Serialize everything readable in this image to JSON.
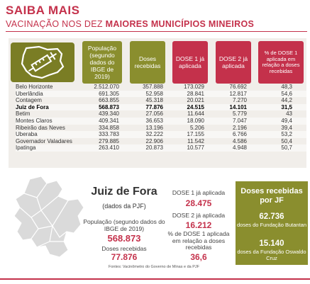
{
  "header": {
    "title": "SAIBA MAIS",
    "subtitle_prefix": "VACINAÇÃO NOS DEZ ",
    "subtitle_bold": "MAIORES MUNICÍPIOS MINEIROS"
  },
  "columns": [
    "População (segundo dados do IBGE de 2019)",
    "Doses recebidas",
    "DOSE 1 já aplicada",
    "DOSE 2 já aplicada",
    "% de DOSE 1 aplicada em relação a doses recebidas"
  ],
  "rows": [
    {
      "city": "Belo Horizonte",
      "pop": "2.512.070",
      "doses": "357.888",
      "d1": "173.029",
      "d2": "76.692",
      "pct": "48,3"
    },
    {
      "city": "Uberlândia",
      "pop": "691.305",
      "doses": "52.958",
      "d1": "28.841",
      "d2": "12.817",
      "pct": "54,6"
    },
    {
      "city": "Contagem",
      "pop": "663.855",
      "doses": "45.318",
      "d1": "20.021",
      "d2": "7.270",
      "pct": "44,2"
    },
    {
      "city": "Juiz de Fora",
      "pop": "568.873",
      "doses": "77.876",
      "d1": "24.515",
      "d2": "14.101",
      "pct": "31,5"
    },
    {
      "city": "Betim",
      "pop": "439.340",
      "doses": "27.056",
      "d1": "11.644",
      "d2": "5.779",
      "pct": "43"
    },
    {
      "city": "Montes Claros",
      "pop": "409.341",
      "doses": "36.653",
      "d1": "18.090",
      "d2": "7.047",
      "pct": "49,4"
    },
    {
      "city": "Ribeirão das Neves",
      "pop": "334.858",
      "doses": "13.196",
      "d1": "5.206",
      "d2": "2.196",
      "pct": "39,4"
    },
    {
      "city": "Uberaba",
      "pop": "333.783",
      "doses": "32.222",
      "d1": "17.155",
      "d2": "6.766",
      "pct": "53,2"
    },
    {
      "city": "Governador Valadares",
      "pop": "279.885",
      "doses": "22.906",
      "d1": "11.542",
      "d2": "4.586",
      "pct": "50,4"
    },
    {
      "city": "Ipatinga",
      "pop": "263.410",
      "doses": "20.873",
      "d1": "10.577",
      "d2": "4.948",
      "pct": "50,7"
    }
  ],
  "juiz_de_fora": {
    "title": "Juiz de Fora",
    "source": "(dados da PJF)",
    "population_label": "População (segundo dados do IBGE de 2019)",
    "population": "568.873",
    "doses_label": "Doses recebidas",
    "doses": "77.876",
    "dose1_label": "DOSE 1 já aplicada",
    "dose1": "28.475",
    "dose2_label": "DOSE 2 já aplicada",
    "dose2": "16.212",
    "pct_label": "% de DOSE 1 aplicada em relação a doses recebidas",
    "pct": "36,6"
  },
  "doses_box": {
    "title": "Doses recebidas por JF",
    "butantan_value": "62.736",
    "butantan_label": "doses do Fundação Butantan",
    "fiocruz_value": "15.140",
    "fiocruz_label": "doses da Fundação Oswaldo Cruz"
  },
  "footer_source": "Fontes: Vacinômetro do Governo de Minas e da PJF",
  "colors": {
    "accent_red": "#c4314b",
    "olive": "#8a8e2e",
    "table_bg": "#f1eeea"
  },
  "icons": [
    "minas-gerais-syringe-icon",
    "juiz-de-fora-map"
  ]
}
